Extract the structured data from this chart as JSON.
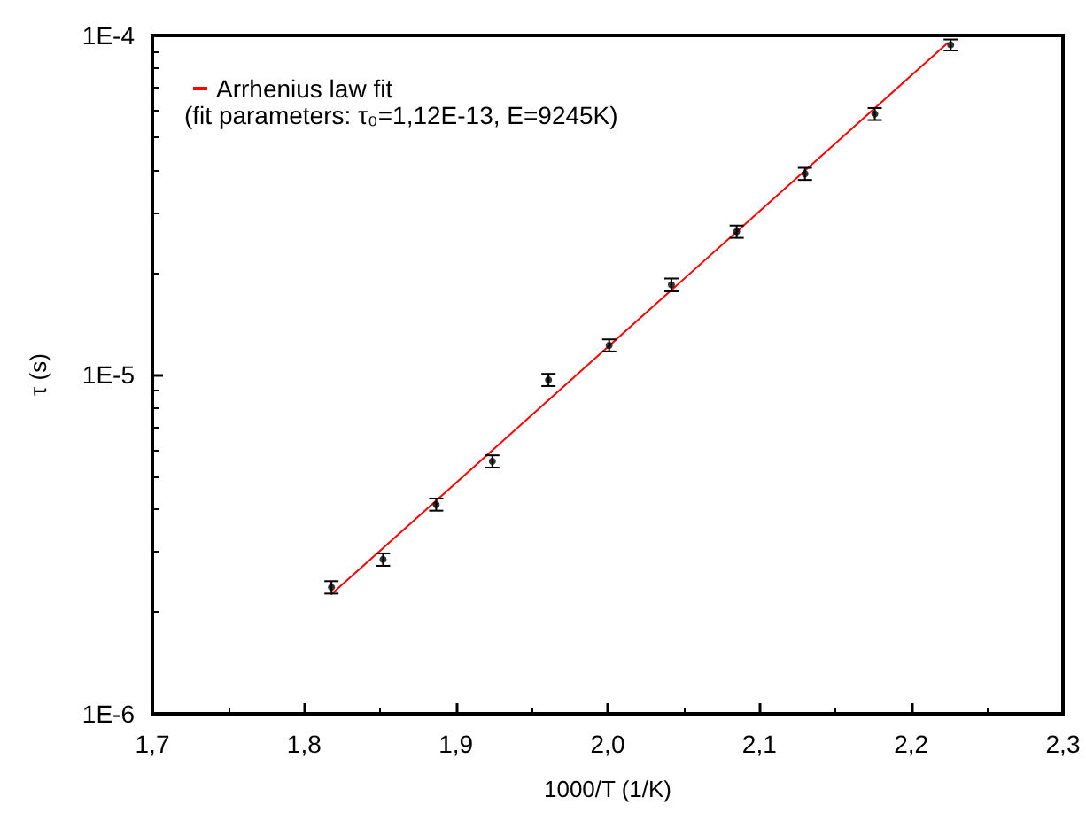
{
  "chart_data": {
    "type": "scatter",
    "xlabel": "1000/T (1/K)",
    "ylabel": "τ (s)",
    "xlim": [
      1.7,
      2.3
    ],
    "xticks": [
      {
        "value": 1.7,
        "label": "1,7"
      },
      {
        "value": 1.8,
        "label": "1,8"
      },
      {
        "value": 1.9,
        "label": "1,9"
      },
      {
        "value": 2.0,
        "label": "2,0"
      },
      {
        "value": 2.1,
        "label": "2,1"
      },
      {
        "value": 2.2,
        "label": "2,2"
      },
      {
        "value": 2.3,
        "label": "2,3"
      }
    ],
    "ylim": [
      1e-06,
      0.0001
    ],
    "yticks": [
      {
        "value": 1e-06,
        "label": "1E-6"
      },
      {
        "value": 1e-05,
        "label": "1E-5"
      },
      {
        "value": 0.0001,
        "label": "1E-4"
      }
    ],
    "log": "y",
    "grid": false,
    "legend": "top left",
    "marker": "circle",
    "annotations": [
      "(fit parameters: τ₀=1,12E-13, E=9245K)"
    ],
    "series": [
      {
        "color": "#000000",
        "x": [
          1.818,
          1.852,
          1.887,
          1.924,
          1.961,
          2.001,
          2.042,
          2.085,
          2.13,
          2.176,
          2.226
        ],
        "values": [
          2.36e-06,
          2.85e-06,
          4.14e-06,
          5.55e-06,
          9.65e-06,
          1.22e-05,
          1.84e-05,
          2.64e-05,
          3.91e-05,
          5.87e-05,
          9.38e-05
        ],
        "errors": [
          1e-07,
          1.2e-07,
          1.7e-07,
          2.3e-07,
          4e-07,
          5e-07,
          8e-07,
          1.1e-06,
          1.6e-06,
          2.4e-06,
          3.5e-06
        ]
      },
      {
        "type": "line",
        "name": "Arrhenius law fit",
        "color": "#ff0000",
        "marker": "none",
        "line_style": "solid",
        "x": [
          1.818,
          2.224
        ],
        "values": [
          2.25e-06,
          9.5e-05
        ]
      }
    ]
  }
}
